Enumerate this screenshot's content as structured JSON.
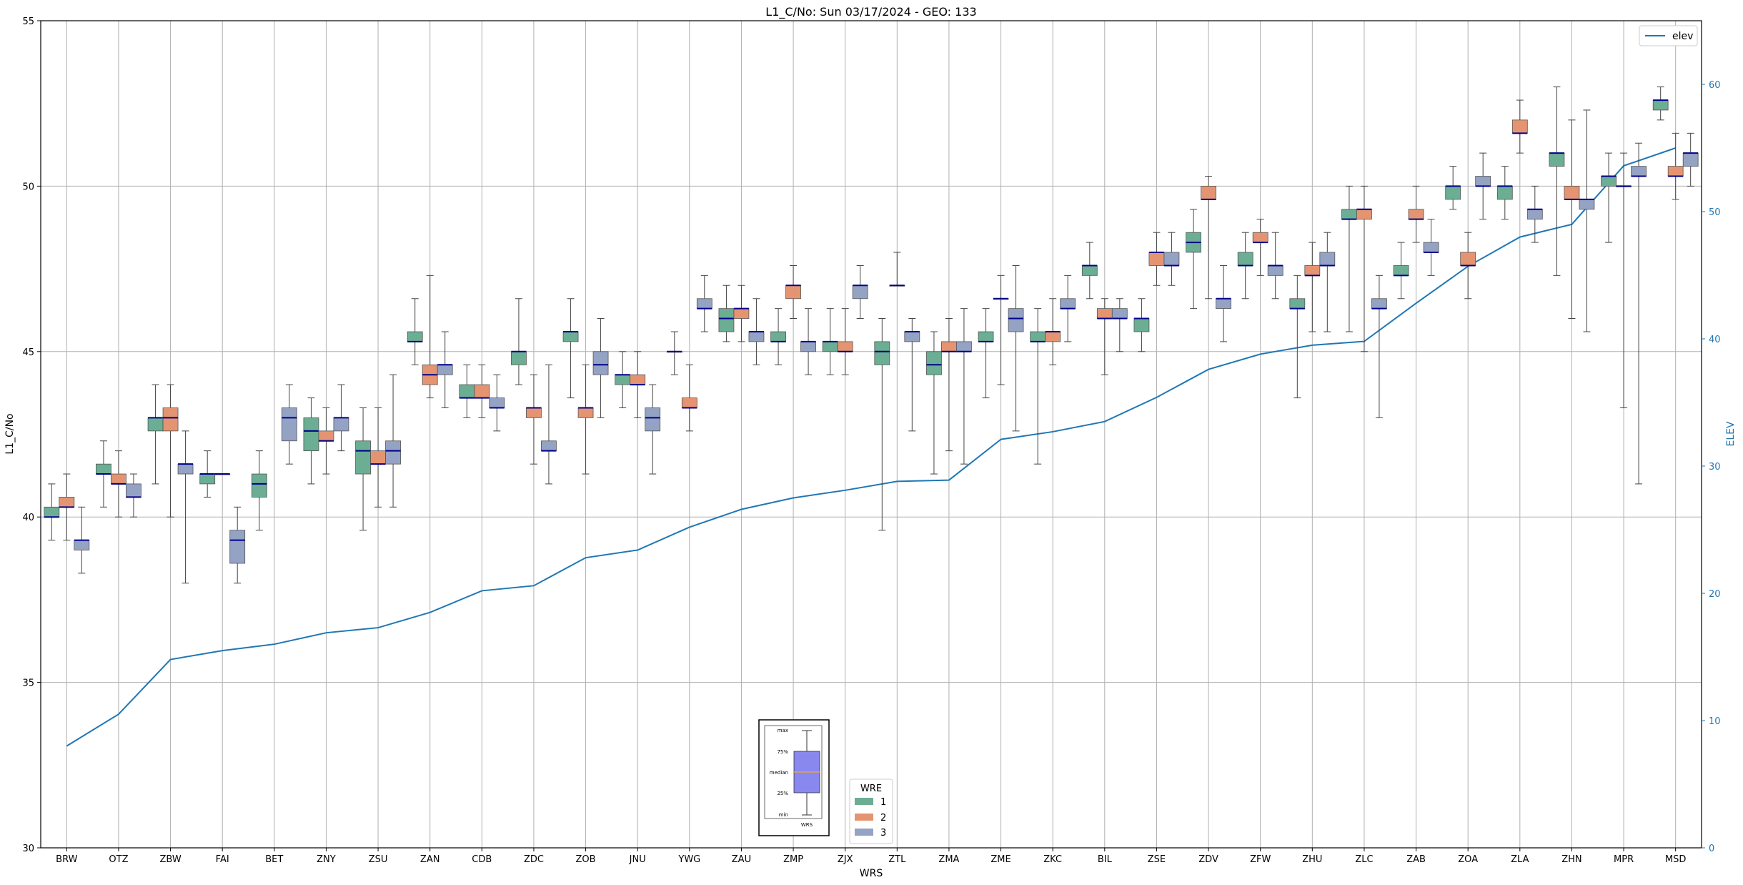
{
  "chart_data": {
    "type": "box",
    "title": "L1_C/No: Sun 03/17/2024 - GEO: 133",
    "xlabel": "WRS",
    "ylabel": "L1_C/No",
    "y2label": "ELEV",
    "ylim": [
      30,
      55
    ],
    "y2lim": [
      0,
      65
    ],
    "yticks": [
      30,
      35,
      40,
      45,
      50,
      55
    ],
    "y2ticks": [
      0,
      10,
      20,
      30,
      40,
      50,
      60
    ],
    "grid": true,
    "categories": [
      "BRW",
      "OTZ",
      "ZBW",
      "FAI",
      "BET",
      "ZNY",
      "ZSU",
      "ZAN",
      "CDB",
      "ZDC",
      "ZOB",
      "JNU",
      "YWG",
      "ZAU",
      "ZMP",
      "ZJX",
      "ZTL",
      "ZMA",
      "ZME",
      "ZKC",
      "BIL",
      "ZSE",
      "ZDV",
      "ZFW",
      "ZHU",
      "ZLC",
      "ZAB",
      "ZOA",
      "ZLA",
      "ZHN",
      "MPR",
      "MSD"
    ],
    "legend_wre": {
      "title": "WRE",
      "placement": "bottom-center",
      "entries": [
        {
          "label": "1",
          "color": "#6bae94"
        },
        {
          "label": "2",
          "color": "#e59472"
        },
        {
          "label": "3",
          "color": "#94a2c4"
        }
      ]
    },
    "legend_line": {
      "label": "elev",
      "placement": "top-right"
    },
    "inset_key": {
      "labels": [
        "max",
        "75%",
        "median",
        "25%",
        "min"
      ],
      "xlabel": "WRS"
    },
    "boxes": [
      {
        "station": "BRW",
        "wre": 1,
        "min": 39.3,
        "q1": 40.0,
        "median": 40.0,
        "q3": 40.3,
        "max": 41.0
      },
      {
        "station": "BRW",
        "wre": 2,
        "min": 39.3,
        "q1": 40.3,
        "median": 40.3,
        "q3": 40.6,
        "max": 41.3
      },
      {
        "station": "BRW",
        "wre": 3,
        "min": 38.3,
        "q1": 39.0,
        "median": 39.3,
        "q3": 39.3,
        "max": 40.3
      },
      {
        "station": "OTZ",
        "wre": 1,
        "min": 40.3,
        "q1": 41.3,
        "median": 41.3,
        "q3": 41.6,
        "max": 42.3
      },
      {
        "station": "OTZ",
        "wre": 2,
        "min": 40.0,
        "q1": 41.0,
        "median": 41.0,
        "q3": 41.3,
        "max": 42.0
      },
      {
        "station": "OTZ",
        "wre": 3,
        "min": 40.0,
        "q1": 40.6,
        "median": 40.6,
        "q3": 41.0,
        "max": 41.3
      },
      {
        "station": "ZBW",
        "wre": 1,
        "min": 41.0,
        "q1": 42.6,
        "median": 43.0,
        "q3": 43.0,
        "max": 44.0
      },
      {
        "station": "ZBW",
        "wre": 2,
        "min": 40.0,
        "q1": 42.6,
        "median": 43.0,
        "q3": 43.3,
        "max": 44.0
      },
      {
        "station": "ZBW",
        "wre": 3,
        "min": 38.0,
        "q1": 41.3,
        "median": 41.6,
        "q3": 41.6,
        "max": 42.6
      },
      {
        "station": "FAI",
        "wre": 1,
        "min": 40.6,
        "q1": 41.0,
        "median": 41.3,
        "q3": 41.3,
        "max": 42.0
      },
      {
        "station": "FAI",
        "wre": 2,
        "min": 41.3,
        "q1": 41.3,
        "median": 41.3,
        "q3": 41.3,
        "max": 41.3
      },
      {
        "station": "FAI",
        "wre": 3,
        "min": 38.0,
        "q1": 38.6,
        "median": 39.3,
        "q3": 39.6,
        "max": 40.3
      },
      {
        "station": "BET",
        "wre": 1,
        "min": 39.6,
        "q1": 40.6,
        "median": 41.0,
        "q3": 41.3,
        "max": 42.0
      },
      {
        "station": "BET",
        "wre": 3,
        "min": 41.6,
        "q1": 42.3,
        "median": 43.0,
        "q3": 43.3,
        "max": 44.0
      },
      {
        "station": "ZNY",
        "wre": 1,
        "min": 41.0,
        "q1": 42.0,
        "median": 42.6,
        "q3": 43.0,
        "max": 43.6
      },
      {
        "station": "ZNY",
        "wre": 2,
        "min": 41.3,
        "q1": 42.3,
        "median": 42.3,
        "q3": 42.6,
        "max": 43.3
      },
      {
        "station": "ZNY",
        "wre": 3,
        "min": 42.0,
        "q1": 42.6,
        "median": 43.0,
        "q3": 43.0,
        "max": 44.0
      },
      {
        "station": "ZSU",
        "wre": 1,
        "min": 39.6,
        "q1": 41.3,
        "median": 42.0,
        "q3": 42.3,
        "max": 43.3
      },
      {
        "station": "ZSU",
        "wre": 2,
        "min": 40.3,
        "q1": 41.6,
        "median": 41.6,
        "q3": 42.0,
        "max": 43.3
      },
      {
        "station": "ZSU",
        "wre": 3,
        "min": 40.3,
        "q1": 41.6,
        "median": 42.0,
        "q3": 42.3,
        "max": 44.3
      },
      {
        "station": "ZAN",
        "wre": 1,
        "min": 44.6,
        "q1": 45.3,
        "median": 45.3,
        "q3": 45.6,
        "max": 46.6
      },
      {
        "station": "ZAN",
        "wre": 2,
        "min": 43.6,
        "q1": 44.0,
        "median": 44.3,
        "q3": 44.6,
        "max": 47.3
      },
      {
        "station": "ZAN",
        "wre": 3,
        "min": 43.3,
        "q1": 44.3,
        "median": 44.6,
        "q3": 44.6,
        "max": 45.6
      },
      {
        "station": "CDB",
        "wre": 1,
        "min": 43.0,
        "q1": 43.6,
        "median": 43.6,
        "q3": 44.0,
        "max": 44.6
      },
      {
        "station": "CDB",
        "wre": 2,
        "min": 43.0,
        "q1": 43.6,
        "median": 43.6,
        "q3": 44.0,
        "max": 44.6
      },
      {
        "station": "CDB",
        "wre": 3,
        "min": 42.6,
        "q1": 43.3,
        "median": 43.3,
        "q3": 43.6,
        "max": 44.3
      },
      {
        "station": "ZDC",
        "wre": 1,
        "min": 44.0,
        "q1": 44.6,
        "median": 45.0,
        "q3": 45.0,
        "max": 46.6
      },
      {
        "station": "ZDC",
        "wre": 2,
        "min": 41.6,
        "q1": 43.0,
        "median": 43.3,
        "q3": 43.3,
        "max": 44.3
      },
      {
        "station": "ZDC",
        "wre": 3,
        "min": 41.0,
        "q1": 42.0,
        "median": 42.0,
        "q3": 42.3,
        "max": 44.6
      },
      {
        "station": "ZOB",
        "wre": 1,
        "min": 43.6,
        "q1": 45.3,
        "median": 45.6,
        "q3": 45.6,
        "max": 46.6
      },
      {
        "station": "ZOB",
        "wre": 2,
        "min": 41.3,
        "q1": 43.0,
        "median": 43.3,
        "q3": 43.3,
        "max": 44.6
      },
      {
        "station": "ZOB",
        "wre": 3,
        "min": 43.0,
        "q1": 44.3,
        "median": 44.6,
        "q3": 45.0,
        "max": 46.0
      },
      {
        "station": "JNU",
        "wre": 1,
        "min": 43.3,
        "q1": 44.0,
        "median": 44.3,
        "q3": 44.3,
        "max": 45.0
      },
      {
        "station": "JNU",
        "wre": 2,
        "min": 43.0,
        "q1": 44.0,
        "median": 44.0,
        "q3": 44.3,
        "max": 45.0
      },
      {
        "station": "JNU",
        "wre": 3,
        "min": 41.3,
        "q1": 42.6,
        "median": 43.0,
        "q3": 43.3,
        "max": 44.0
      },
      {
        "station": "YWG",
        "wre": 1,
        "min": 44.3,
        "q1": 45.0,
        "median": 45.0,
        "q3": 45.0,
        "max": 45.6
      },
      {
        "station": "YWG",
        "wre": 2,
        "min": 42.6,
        "q1": 43.3,
        "median": 43.3,
        "q3": 43.6,
        "max": 44.6
      },
      {
        "station": "YWG",
        "wre": 3,
        "min": 45.6,
        "q1": 46.3,
        "median": 46.3,
        "q3": 46.6,
        "max": 47.3
      },
      {
        "station": "ZAU",
        "wre": 1,
        "min": 45.3,
        "q1": 45.6,
        "median": 46.0,
        "q3": 46.3,
        "max": 47.0
      },
      {
        "station": "ZAU",
        "wre": 2,
        "min": 45.3,
        "q1": 46.0,
        "median": 46.3,
        "q3": 46.3,
        "max": 47.0
      },
      {
        "station": "ZAU",
        "wre": 3,
        "min": 44.6,
        "q1": 45.3,
        "median": 45.6,
        "q3": 45.6,
        "max": 46.6
      },
      {
        "station": "ZMP",
        "wre": 1,
        "min": 44.6,
        "q1": 45.3,
        "median": 45.3,
        "q3": 45.6,
        "max": 46.3
      },
      {
        "station": "ZMP",
        "wre": 2,
        "min": 46.0,
        "q1": 46.6,
        "median": 47.0,
        "q3": 47.0,
        "max": 47.6
      },
      {
        "station": "ZMP",
        "wre": 3,
        "min": 44.3,
        "q1": 45.0,
        "median": 45.3,
        "q3": 45.3,
        "max": 46.3
      },
      {
        "station": "ZJX",
        "wre": 1,
        "min": 44.3,
        "q1": 45.0,
        "median": 45.3,
        "q3": 45.3,
        "max": 46.3
      },
      {
        "station": "ZJX",
        "wre": 2,
        "min": 44.3,
        "q1": 45.0,
        "median": 45.0,
        "q3": 45.3,
        "max": 46.3
      },
      {
        "station": "ZJX",
        "wre": 3,
        "min": 46.0,
        "q1": 46.6,
        "median": 47.0,
        "q3": 47.0,
        "max": 47.6
      },
      {
        "station": "ZTL",
        "wre": 1,
        "min": 39.6,
        "q1": 44.6,
        "median": 45.0,
        "q3": 45.3,
        "max": 46.0
      },
      {
        "station": "ZTL",
        "wre": 2,
        "min": 47.0,
        "q1": 47.0,
        "median": 47.0,
        "q3": 47.0,
        "max": 48.0
      },
      {
        "station": "ZTL",
        "wre": 3,
        "min": 42.6,
        "q1": 45.3,
        "median": 45.6,
        "q3": 45.6,
        "max": 46.0
      },
      {
        "station": "ZMA",
        "wre": 1,
        "min": 41.3,
        "q1": 44.3,
        "median": 44.6,
        "q3": 45.0,
        "max": 45.6
      },
      {
        "station": "ZMA",
        "wre": 2,
        "min": 42.0,
        "q1": 45.0,
        "median": 45.0,
        "q3": 45.3,
        "max": 46.0
      },
      {
        "station": "ZMA",
        "wre": 3,
        "min": 41.6,
        "q1": 45.0,
        "median": 45.0,
        "q3": 45.3,
        "max": 46.3
      },
      {
        "station": "ZME",
        "wre": 1,
        "min": 43.6,
        "q1": 45.3,
        "median": 45.3,
        "q3": 45.6,
        "max": 46.3
      },
      {
        "station": "ZME",
        "wre": 2,
        "min": 44.0,
        "q1": 46.6,
        "median": 46.6,
        "q3": 46.6,
        "max": 47.3
      },
      {
        "station": "ZME",
        "wre": 3,
        "min": 42.6,
        "q1": 45.6,
        "median": 46.0,
        "q3": 46.3,
        "max": 47.6
      },
      {
        "station": "ZKC",
        "wre": 1,
        "min": 41.6,
        "q1": 45.3,
        "median": 45.3,
        "q3": 45.6,
        "max": 46.3
      },
      {
        "station": "ZKC",
        "wre": 2,
        "min": 44.6,
        "q1": 45.3,
        "median": 45.6,
        "q3": 45.6,
        "max": 46.6
      },
      {
        "station": "ZKC",
        "wre": 3,
        "min": 45.3,
        "q1": 46.3,
        "median": 46.3,
        "q3": 46.6,
        "max": 47.3
      },
      {
        "station": "BIL",
        "wre": 1,
        "min": 46.6,
        "q1": 47.3,
        "median": 47.6,
        "q3": 47.6,
        "max": 48.3
      },
      {
        "station": "BIL",
        "wre": 2,
        "min": 44.3,
        "q1": 46.0,
        "median": 46.0,
        "q3": 46.3,
        "max": 46.6
      },
      {
        "station": "BIL",
        "wre": 3,
        "min": 45.0,
        "q1": 46.0,
        "median": 46.0,
        "q3": 46.3,
        "max": 46.6
      },
      {
        "station": "ZSE",
        "wre": 1,
        "min": 45.0,
        "q1": 45.6,
        "median": 46.0,
        "q3": 46.0,
        "max": 46.6
      },
      {
        "station": "ZSE",
        "wre": 2,
        "min": 47.0,
        "q1": 47.6,
        "median": 48.0,
        "q3": 48.0,
        "max": 48.6
      },
      {
        "station": "ZSE",
        "wre": 3,
        "min": 47.0,
        "q1": 47.6,
        "median": 47.6,
        "q3": 48.0,
        "max": 48.6
      },
      {
        "station": "ZDV",
        "wre": 1,
        "min": 46.3,
        "q1": 48.0,
        "median": 48.3,
        "q3": 48.6,
        "max": 49.3
      },
      {
        "station": "ZDV",
        "wre": 2,
        "min": 46.6,
        "q1": 49.6,
        "median": 49.6,
        "q3": 50.0,
        "max": 50.3
      },
      {
        "station": "ZDV",
        "wre": 3,
        "min": 45.3,
        "q1": 46.3,
        "median": 46.6,
        "q3": 46.6,
        "max": 47.6
      },
      {
        "station": "ZFW",
        "wre": 1,
        "min": 46.6,
        "q1": 47.6,
        "median": 47.6,
        "q3": 48.0,
        "max": 48.6
      },
      {
        "station": "ZFW",
        "wre": 2,
        "min": 47.3,
        "q1": 48.3,
        "median": 48.3,
        "q3": 48.6,
        "max": 49.0
      },
      {
        "station": "ZFW",
        "wre": 3,
        "min": 46.6,
        "q1": 47.3,
        "median": 47.6,
        "q3": 47.6,
        "max": 48.6
      },
      {
        "station": "ZHU",
        "wre": 1,
        "min": 43.6,
        "q1": 46.3,
        "median": 46.3,
        "q3": 46.6,
        "max": 47.3
      },
      {
        "station": "ZHU",
        "wre": 2,
        "min": 45.6,
        "q1": 47.3,
        "median": 47.3,
        "q3": 47.6,
        "max": 48.3
      },
      {
        "station": "ZHU",
        "wre": 3,
        "min": 45.6,
        "q1": 47.6,
        "median": 47.6,
        "q3": 48.0,
        "max": 48.6
      },
      {
        "station": "ZLC",
        "wre": 1,
        "min": 45.6,
        "q1": 49.0,
        "median": 49.0,
        "q3": 49.3,
        "max": 50.0
      },
      {
        "station": "ZLC",
        "wre": 2,
        "min": 45.0,
        "q1": 49.0,
        "median": 49.3,
        "q3": 49.3,
        "max": 50.0
      },
      {
        "station": "ZLC",
        "wre": 3,
        "min": 43.0,
        "q1": 46.3,
        "median": 46.3,
        "q3": 46.6,
        "max": 47.3
      },
      {
        "station": "ZAB",
        "wre": 1,
        "min": 46.6,
        "q1": 47.3,
        "median": 47.3,
        "q3": 47.6,
        "max": 48.3
      },
      {
        "station": "ZAB",
        "wre": 2,
        "min": 48.3,
        "q1": 49.0,
        "median": 49.0,
        "q3": 49.3,
        "max": 50.0
      },
      {
        "station": "ZAB",
        "wre": 3,
        "min": 47.3,
        "q1": 48.0,
        "median": 48.0,
        "q3": 48.3,
        "max": 49.0
      },
      {
        "station": "ZOA",
        "wre": 1,
        "min": 49.3,
        "q1": 49.6,
        "median": 50.0,
        "q3": 50.0,
        "max": 50.6
      },
      {
        "station": "ZOA",
        "wre": 2,
        "min": 46.6,
        "q1": 47.6,
        "median": 47.6,
        "q3": 48.0,
        "max": 48.6
      },
      {
        "station": "ZOA",
        "wre": 3,
        "min": 49.0,
        "q1": 50.0,
        "median": 50.0,
        "q3": 50.3,
        "max": 51.0
      },
      {
        "station": "ZLA",
        "wre": 1,
        "min": 49.0,
        "q1": 49.6,
        "median": 50.0,
        "q3": 50.0,
        "max": 50.6
      },
      {
        "station": "ZLA",
        "wre": 2,
        "min": 51.0,
        "q1": 51.6,
        "median": 51.6,
        "q3": 52.0,
        "max": 52.6
      },
      {
        "station": "ZLA",
        "wre": 3,
        "min": 48.3,
        "q1": 49.0,
        "median": 49.3,
        "q3": 49.3,
        "max": 50.0
      },
      {
        "station": "ZHN",
        "wre": 1,
        "min": 47.3,
        "q1": 50.6,
        "median": 51.0,
        "q3": 51.0,
        "max": 53.0
      },
      {
        "station": "ZHN",
        "wre": 2,
        "min": 46.0,
        "q1": 49.6,
        "median": 49.6,
        "q3": 50.0,
        "max": 52.0
      },
      {
        "station": "ZHN",
        "wre": 3,
        "min": 45.6,
        "q1": 49.3,
        "median": 49.6,
        "q3": 49.6,
        "max": 52.3
      },
      {
        "station": "MPR",
        "wre": 1,
        "min": 48.3,
        "q1": 50.0,
        "median": 50.3,
        "q3": 50.3,
        "max": 51.0
      },
      {
        "station": "MPR",
        "wre": 2,
        "min": 43.3,
        "q1": 50.0,
        "median": 50.0,
        "q3": 50.0,
        "max": 51.0
      },
      {
        "station": "MPR",
        "wre": 3,
        "min": 41.0,
        "q1": 50.3,
        "median": 50.3,
        "q3": 50.6,
        "max": 51.3
      },
      {
        "station": "MSD",
        "wre": 1,
        "min": 52.0,
        "q1": 52.3,
        "median": 52.6,
        "q3": 52.6,
        "max": 53.0
      },
      {
        "station": "MSD",
        "wre": 2,
        "min": 49.6,
        "q1": 50.3,
        "median": 50.3,
        "q3": 50.6,
        "max": 51.6
      },
      {
        "station": "MSD",
        "wre": 3,
        "min": 50.0,
        "q1": 50.6,
        "median": 51.0,
        "q3": 51.0,
        "max": 51.6
      }
    ],
    "elev_series": {
      "name": "elev",
      "values": [
        8.0,
        10.5,
        14.8,
        15.5,
        16.0,
        16.9,
        17.3,
        18.5,
        20.2,
        20.6,
        22.8,
        23.4,
        25.2,
        26.6,
        27.5,
        28.1,
        28.8,
        28.9,
        32.1,
        32.7,
        33.5,
        35.4,
        37.6,
        38.8,
        39.5,
        39.8,
        42.8,
        45.7,
        48.0,
        49.0,
        53.6,
        55.0
      ]
    }
  }
}
